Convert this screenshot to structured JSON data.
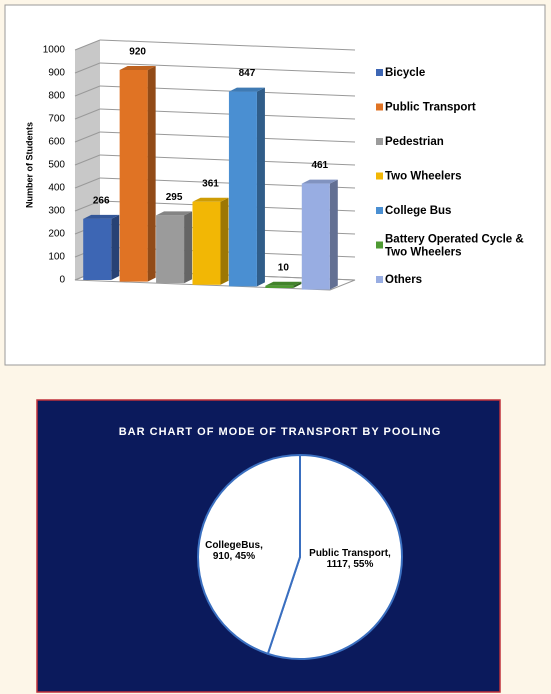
{
  "chart_data": [
    {
      "type": "bar3d",
      "y_label": "Number of Students",
      "categories": [
        "Bicycle",
        "Public Transport",
        "Pedestrian",
        "Two Wheelers",
        "College Bus",
        "Battery Operated Cycle & Two Wheelers",
        "Others"
      ],
      "values": [
        266,
        920,
        295,
        361,
        847,
        10,
        461
      ],
      "colors": [
        "#3d66b4",
        "#e07324",
        "#9b9b9b",
        "#f2b705",
        "#4a8fd2",
        "#4e9a32",
        "#98ade2"
      ],
      "ylim": [
        0,
        1000
      ],
      "yticks": [
        0,
        100,
        200,
        300,
        400,
        500,
        600,
        700,
        800,
        900,
        1000
      ],
      "grid": true,
      "legend": "right"
    },
    {
      "type": "pie",
      "title": "BAR CHART OF MODE OF TRANSPORT  BY POOLING",
      "values": [
        1117,
        910
      ],
      "value_labels": [
        "Public Transport, 1117, 55%",
        "CollegeBus, 910, 45%"
      ],
      "color": "#ffffff",
      "edge_color": "#3a6fc0"
    }
  ]
}
